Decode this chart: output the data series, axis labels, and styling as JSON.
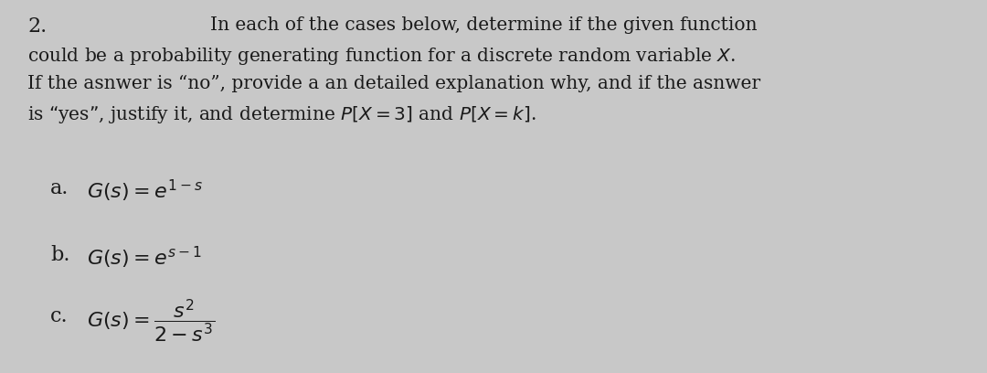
{
  "background_color": "#d8d8d8",
  "number": "2.",
  "line1": "In each of the cases below, determine if the given function",
  "line2": "could be a probability generating function for a discrete random variable $X$.",
  "line3": "If the asnwer is “no”, provide a an detailed explanation why, and if the asnwer",
  "line4": "is “yes”, justify it, and determine $P[X = 3]$ and $P[X = k]$.",
  "part_a_label": "a.",
  "part_a_expr": "$G(s) = e^{1-s}$",
  "part_b_label": "b.",
  "part_b_expr": "$G(s) = e^{s-1}$",
  "part_c_label": "c.",
  "part_c_expr": "$G(s) = \\dfrac{s^2}{2-s^3}$",
  "font_size_paragraph": 14.5,
  "font_size_parts": 16,
  "font_size_number": 16,
  "text_color": "#1a1a1a"
}
